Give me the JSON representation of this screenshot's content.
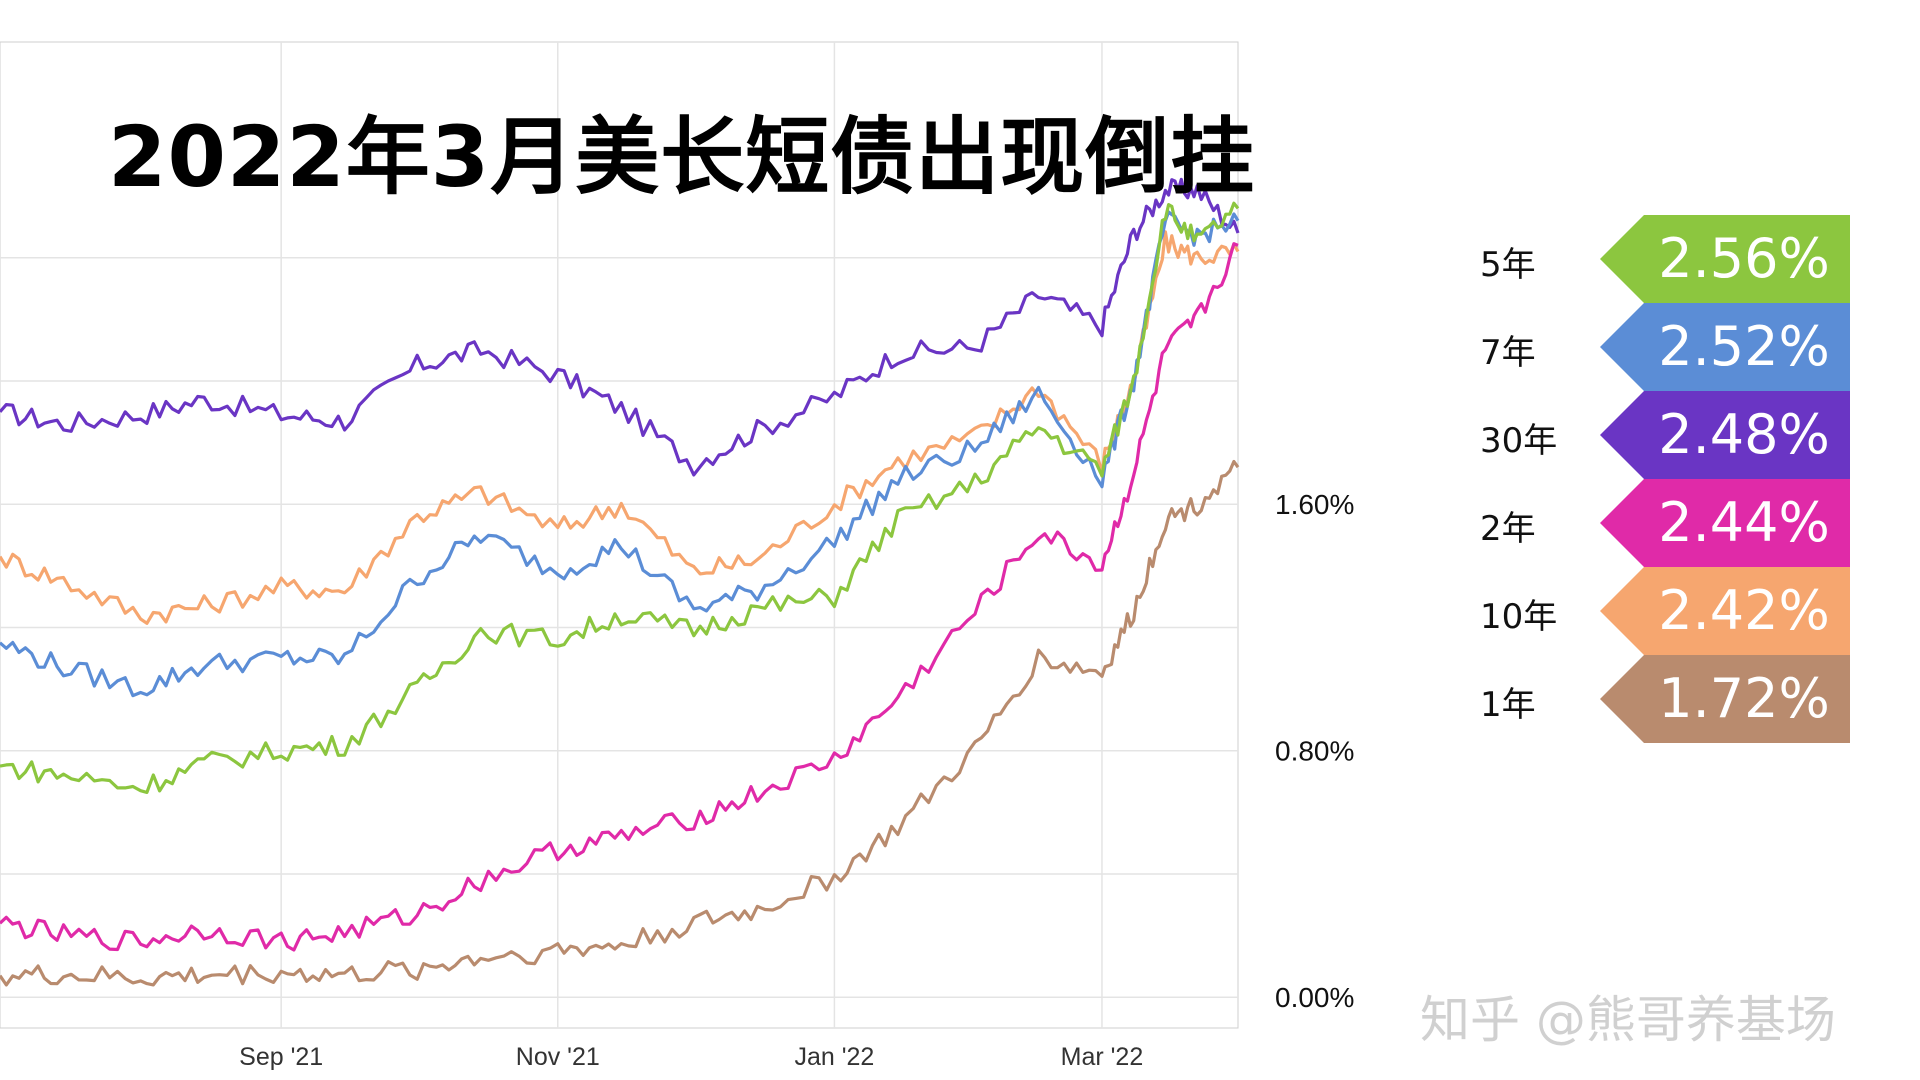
{
  "chart_data": {
    "type": "line",
    "title": "2022年3月美长短债出现倒挂",
    "x_ticks": [
      "Sep '21",
      "Nov '21",
      "Jan '22",
      "Mar '22"
    ],
    "x_tick_dates": [
      "2021-09-01",
      "2021-11-01",
      "2022-01-01",
      "2022-03-01"
    ],
    "x_range": [
      "2021-07-01",
      "2022-03-31"
    ],
    "y_ticks": [
      "0.00%",
      "0.80%",
      "1.60%"
    ],
    "y_tick_values": [
      0.0,
      0.8,
      1.6
    ],
    "ylim": [
      -0.1,
      3.1
    ],
    "grid": true,
    "legend_position": "right",
    "x": [
      "2021-07-01",
      "2021-07-15",
      "2021-08-01",
      "2021-08-15",
      "2021-09-01",
      "2021-09-15",
      "2021-10-01",
      "2021-10-15",
      "2021-11-01",
      "2021-11-15",
      "2021-12-01",
      "2021-12-15",
      "2022-01-01",
      "2022-01-15",
      "2022-02-01",
      "2022-02-15",
      "2022-03-01",
      "2022-03-08",
      "2022-03-15",
      "2022-03-22",
      "2022-03-31"
    ],
    "series": [
      {
        "name": "30年",
        "value_label": "2.48%",
        "color": "#6a35c4",
        "values": [
          1.9,
          1.86,
          1.89,
          1.94,
          1.89,
          1.87,
          2.05,
          2.1,
          2.02,
          1.91,
          1.73,
          1.84,
          1.95,
          2.09,
          2.11,
          2.28,
          2.18,
          2.48,
          2.62,
          2.62,
          2.48
        ]
      },
      {
        "name": "10年",
        "value_label": "2.42%",
        "color": "#f6a66f",
        "values": [
          1.43,
          1.35,
          1.24,
          1.27,
          1.33,
          1.32,
          1.56,
          1.64,
          1.52,
          1.6,
          1.38,
          1.42,
          1.6,
          1.74,
          1.82,
          1.98,
          1.73,
          2.0,
          2.45,
          2.4,
          2.42
        ]
      },
      {
        "name": "7年",
        "value_label": "2.52%",
        "color": "#5b8dd6",
        "values": [
          1.15,
          1.07,
          1.0,
          1.08,
          1.1,
          1.1,
          1.36,
          1.5,
          1.38,
          1.47,
          1.26,
          1.32,
          1.48,
          1.68,
          1.78,
          1.96,
          1.68,
          2.0,
          2.52,
          2.47,
          2.52
        ]
      },
      {
        "name": "5年",
        "value_label": "2.56%",
        "color": "#8cc63f",
        "values": [
          0.75,
          0.72,
          0.68,
          0.76,
          0.8,
          0.82,
          1.0,
          1.19,
          1.16,
          1.24,
          1.19,
          1.26,
          1.3,
          1.55,
          1.67,
          1.85,
          1.71,
          2.0,
          2.56,
          2.45,
          2.56
        ]
      },
      {
        "name": "2年",
        "value_label": "2.44%",
        "color": "#e02aa8",
        "values": [
          0.24,
          0.2,
          0.18,
          0.22,
          0.18,
          0.21,
          0.27,
          0.38,
          0.48,
          0.52,
          0.58,
          0.66,
          0.77,
          0.97,
          1.25,
          1.51,
          1.4,
          1.7,
          2.1,
          2.2,
          2.44
        ]
      },
      {
        "name": "1年",
        "value_label": "1.72%",
        "color": "#b98b6e",
        "values": [
          0.07,
          0.07,
          0.06,
          0.07,
          0.08,
          0.07,
          0.09,
          0.13,
          0.15,
          0.17,
          0.24,
          0.28,
          0.39,
          0.55,
          0.8,
          1.1,
          1.05,
          1.25,
          1.55,
          1.6,
          1.72
        ]
      }
    ],
    "legend_order": [
      "5年",
      "7年",
      "30年",
      "2年",
      "10年",
      "1年"
    ]
  },
  "watermark": "知乎 @熊哥养基场",
  "colors": {
    "grid": "#e4e4e4",
    "axis": "#cfcfcf"
  }
}
